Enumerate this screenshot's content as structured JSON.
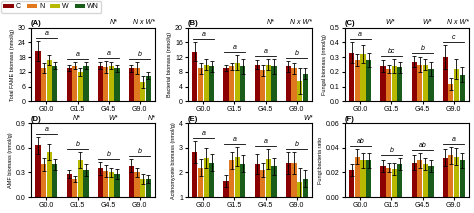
{
  "chart_data": [
    {
      "type": "bar",
      "title": "(A)",
      "ylabel": "Total FAME biomass (nmol/g)",
      "categories": [
        "G0.0",
        "G1.5",
        "G4.5",
        "G9.0"
      ],
      "series": [
        {
          "name": "C",
          "color": "#8B0000",
          "values": [
            20.5,
            13.5,
            14.5,
            13.5
          ],
          "errors": [
            4.0,
            1.2,
            1.5,
            1.5
          ]
        },
        {
          "name": "N",
          "color": "#E07820",
          "values": [
            13.5,
            14.5,
            14.0,
            13.5
          ],
          "errors": [
            2.0,
            1.5,
            2.5,
            2.5
          ]
        },
        {
          "name": "W",
          "color": "#B8B800",
          "values": [
            17.0,
            12.0,
            14.5,
            8.0
          ],
          "errors": [
            2.0,
            1.5,
            1.5,
            2.5
          ]
        },
        {
          "name": "WN",
          "color": "#1A5C1A",
          "values": [
            14.5,
            14.5,
            13.5,
            10.5
          ],
          "errors": [
            1.5,
            1.5,
            1.5,
            1.5
          ]
        }
      ],
      "ylim": [
        0,
        30
      ],
      "yticks": [
        0,
        6,
        12,
        18,
        24,
        30
      ],
      "annotations": [
        "N*",
        "N x W*"
      ],
      "group_labels": [
        "a",
        "a",
        "a",
        "b"
      ],
      "legend": "upper left"
    },
    {
      "type": "bar",
      "title": "(B)",
      "ylabel": "Bacterial biomass (nmol/g)",
      "categories": [
        "G0.0",
        "G1.5",
        "G4.5",
        "G9.0"
      ],
      "series": [
        {
          "name": "C",
          "color": "#8B0000",
          "values": [
            13.5,
            9.0,
            10.0,
            9.5
          ],
          "errors": [
            2.5,
            0.8,
            1.2,
            1.5
          ]
        },
        {
          "name": "N",
          "color": "#E07820",
          "values": [
            9.0,
            9.5,
            8.5,
            9.0
          ],
          "errors": [
            1.5,
            1.0,
            1.5,
            1.5
          ]
        },
        {
          "name": "W",
          "color": "#B8B800",
          "values": [
            10.0,
            10.5,
            10.0,
            5.5
          ],
          "errors": [
            1.5,
            2.0,
            1.5,
            3.5
          ]
        },
        {
          "name": "WN",
          "color": "#1A5C1A",
          "values": [
            9.5,
            9.5,
            9.5,
            7.5
          ],
          "errors": [
            1.5,
            2.0,
            2.0,
            1.5
          ]
        }
      ],
      "ylim": [
        0,
        20
      ],
      "yticks": [
        0,
        4,
        8,
        12,
        16,
        20
      ],
      "annotations": [
        "N*",
        "N x W*"
      ],
      "group_labels": [
        "a",
        "a",
        "a",
        "b"
      ]
    },
    {
      "type": "bar",
      "title": "(C)",
      "ylabel": "Fungal biomass (nmol/g)",
      "categories": [
        "G0.0",
        "G1.5",
        "G4.5",
        "G9.0"
      ],
      "series": [
        {
          "name": "C",
          "color": "#8B0000",
          "values": [
            0.33,
            0.24,
            0.27,
            0.3
          ],
          "errors": [
            0.07,
            0.04,
            0.04,
            0.08
          ]
        },
        {
          "name": "N",
          "color": "#E07820",
          "values": [
            0.28,
            0.22,
            0.25,
            0.12
          ],
          "errors": [
            0.04,
            0.03,
            0.05,
            0.04
          ]
        },
        {
          "name": "W",
          "color": "#B8B800",
          "values": [
            0.32,
            0.24,
            0.25,
            0.22
          ],
          "errors": [
            0.06,
            0.05,
            0.04,
            0.07
          ]
        },
        {
          "name": "WN",
          "color": "#1A5C1A",
          "values": [
            0.28,
            0.23,
            0.22,
            0.18
          ],
          "errors": [
            0.05,
            0.04,
            0.05,
            0.05
          ]
        }
      ],
      "ylim": [
        0.0,
        0.5
      ],
      "yticks": [
        0.0,
        0.1,
        0.2,
        0.3,
        0.4,
        0.5
      ],
      "annotations": [
        "W*",
        "W*",
        "N x W*"
      ],
      "group_labels": [
        "a",
        "bc",
        "b",
        "c"
      ]
    },
    {
      "type": "bar",
      "title": "(D)",
      "ylabel": "AMF biomass (nmol/g)",
      "categories": [
        "G0.0",
        "G1.5",
        "G4.5",
        "G9.0"
      ],
      "series": [
        {
          "name": "C",
          "color": "#8B0000",
          "values": [
            0.63,
            0.28,
            0.35,
            0.38
          ],
          "errors": [
            0.1,
            0.05,
            0.08,
            0.08
          ]
        },
        {
          "name": "N",
          "color": "#E07820",
          "values": [
            0.4,
            0.22,
            0.32,
            0.3
          ],
          "errors": [
            0.08,
            0.04,
            0.07,
            0.06
          ]
        },
        {
          "name": "W",
          "color": "#B8B800",
          "values": [
            0.55,
            0.45,
            0.3,
            0.22
          ],
          "errors": [
            0.1,
            0.1,
            0.06,
            0.06
          ]
        },
        {
          "name": "WN",
          "color": "#1A5C1A",
          "values": [
            0.4,
            0.33,
            0.28,
            0.22
          ],
          "errors": [
            0.07,
            0.07,
            0.06,
            0.05
          ]
        }
      ],
      "ylim": [
        0.0,
        0.9
      ],
      "yticks": [
        0.0,
        0.3,
        0.6,
        0.9
      ],
      "annotations": [
        "N*",
        "W*",
        "N*"
      ],
      "group_labels": [
        "a",
        "b",
        "b",
        "b"
      ]
    },
    {
      "type": "bar",
      "title": "(E)",
      "ylabel": "Actinomycete biomass (nmol/g)",
      "categories": [
        "G0.0",
        "G1.5",
        "G4.5",
        "G9.0"
      ],
      "series": [
        {
          "name": "C",
          "color": "#8B0000",
          "values": [
            2.85,
            1.65,
            2.35,
            2.4
          ],
          "errors": [
            0.45,
            0.25,
            0.4,
            0.45
          ]
        },
        {
          "name": "N",
          "color": "#E07820",
          "values": [
            2.2,
            2.5,
            2.1,
            2.4
          ],
          "errors": [
            0.35,
            0.35,
            0.3,
            0.45
          ]
        },
        {
          "name": "W",
          "color": "#B8B800",
          "values": [
            2.6,
            2.65,
            2.55,
            1.6
          ],
          "errors": [
            0.4,
            0.4,
            0.4,
            0.6
          ]
        },
        {
          "name": "WN",
          "color": "#1A5C1A",
          "values": [
            2.4,
            2.35,
            2.25,
            1.75
          ],
          "errors": [
            0.35,
            0.35,
            0.35,
            0.35
          ]
        }
      ],
      "ylim": [
        1,
        4
      ],
      "yticks": [
        1,
        2,
        3,
        4
      ],
      "annotations": [
        "W*"
      ],
      "group_labels": [
        "a",
        "a",
        "a",
        "b"
      ]
    },
    {
      "type": "bar",
      "title": "(F)",
      "ylabel": "Fungi:bacteria ratio",
      "categories": [
        "G0.0",
        "G1.5",
        "G4.5",
        "G9.0"
      ],
      "series": [
        {
          "name": "C",
          "color": "#8B0000",
          "values": [
            0.022,
            0.025,
            0.028,
            0.032
          ],
          "errors": [
            0.005,
            0.005,
            0.006,
            0.007
          ]
        },
        {
          "name": "N",
          "color": "#E07820",
          "values": [
            0.033,
            0.024,
            0.03,
            0.034
          ],
          "errors": [
            0.006,
            0.004,
            0.006,
            0.007
          ]
        },
        {
          "name": "W",
          "color": "#B8B800",
          "values": [
            0.03,
            0.023,
            0.027,
            0.033
          ],
          "errors": [
            0.006,
            0.005,
            0.005,
            0.007
          ]
        },
        {
          "name": "WN",
          "color": "#1A5C1A",
          "values": [
            0.03,
            0.027,
            0.025,
            0.03
          ],
          "errors": [
            0.006,
            0.005,
            0.005,
            0.006
          ]
        }
      ],
      "ylim": [
        0.0,
        0.06
      ],
      "yticks": [
        {
          "value": 0.0,
          "label": "0.00"
        },
        0.02,
        0.04,
        0.06
      ],
      "group_labels": [
        "ab",
        "b",
        "ab",
        "a"
      ]
    }
  ]
}
